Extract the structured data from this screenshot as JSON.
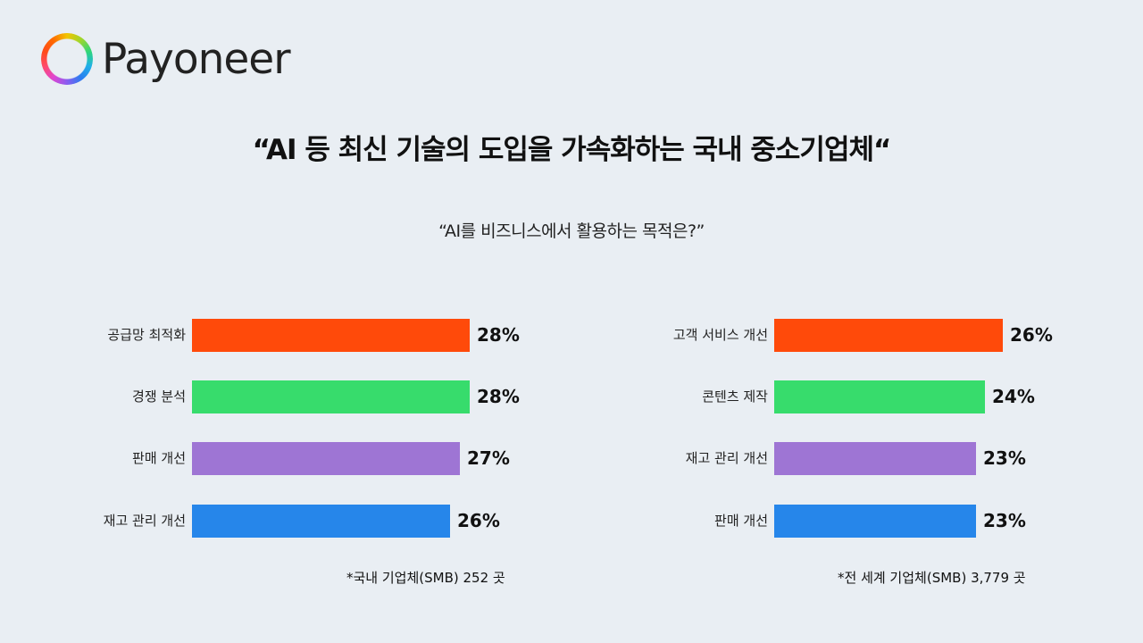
{
  "brand": {
    "name": "Payoneer"
  },
  "header": {
    "title": "“AI 등 최신 기술의 도입을 가속화하는 국내 중소기업체“",
    "subtitle": "“AI를 비즈니스에서 활용하는 목적은?”"
  },
  "colors": {
    "orange": "#ff4a0a",
    "green": "#37dc6c",
    "purple": "#9e75d4",
    "blue": "#2686ea",
    "background": "#e9eef3"
  },
  "chart_data": [
    {
      "type": "bar",
      "orientation": "horizontal",
      "title": "국내 기업체",
      "categories": [
        "공급망 최적화",
        "경쟁 분석",
        "판매 개선",
        "재고 관리 개선"
      ],
      "values": [
        28,
        28,
        27,
        26
      ],
      "value_labels": [
        "28%",
        "28%",
        "27%",
        "26%"
      ],
      "colors": [
        "#ff4a0a",
        "#37dc6c",
        "#9e75d4",
        "#2686ea"
      ],
      "note": "*국내 기업체(SMB) 252 곳",
      "xlabel": "",
      "ylabel": "",
      "unit": "%"
    },
    {
      "type": "bar",
      "orientation": "horizontal",
      "title": "전 세계 기업체",
      "categories": [
        "고객 서비스 개선",
        "콘텐츠 제작",
        "재고 관리 개선",
        "판매 개선"
      ],
      "values": [
        26,
        24,
        23,
        23
      ],
      "value_labels": [
        "26%",
        "24%",
        "23%",
        "23%"
      ],
      "colors": [
        "#ff4a0a",
        "#37dc6c",
        "#9e75d4",
        "#2686ea"
      ],
      "note": "*전 세계 기업체(SMB) 3,779 곳",
      "xlabel": "",
      "ylabel": "",
      "unit": "%"
    }
  ]
}
